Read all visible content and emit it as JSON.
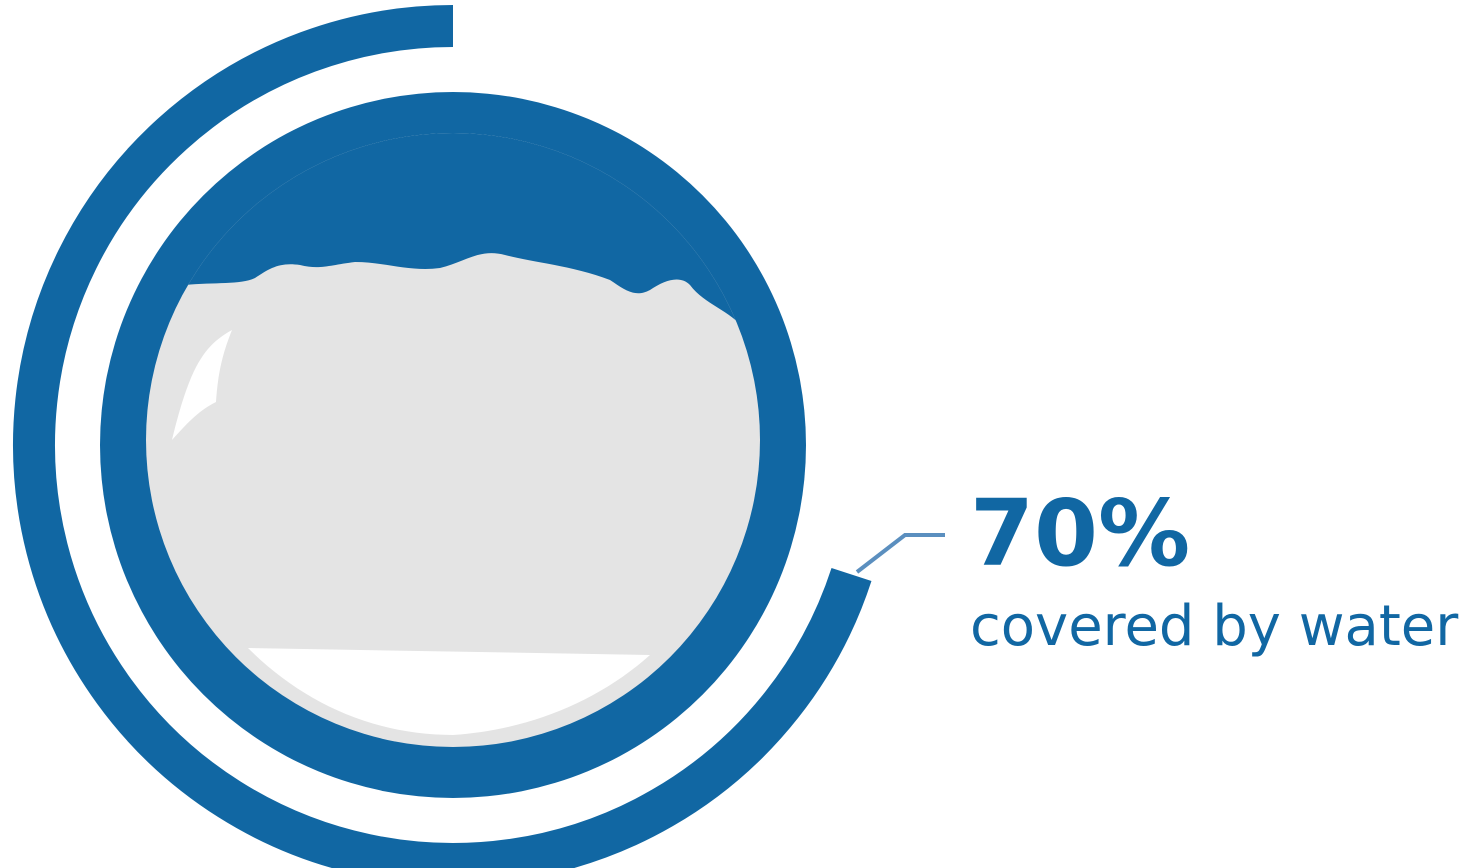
{
  "chart_data": {
    "type": "gauge",
    "categories": [
      "covered by water"
    ],
    "values": [
      70
    ],
    "value_labels": [
      "70%"
    ],
    "ylim": [
      0,
      100
    ],
    "color": "#1167a3"
  }
}
